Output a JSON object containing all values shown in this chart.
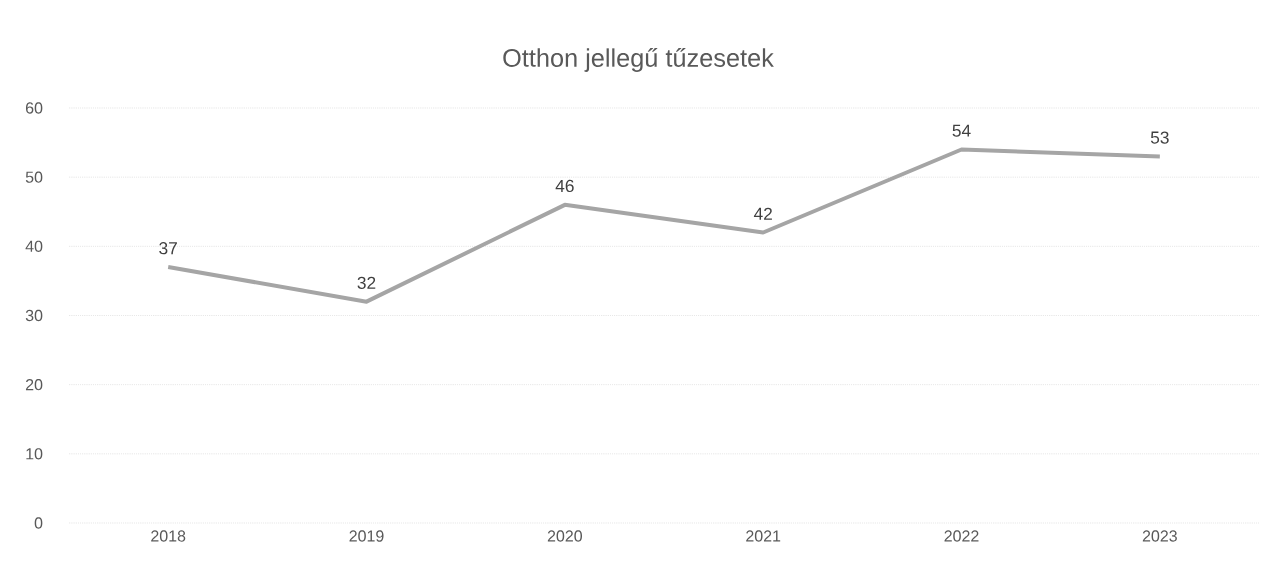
{
  "chart_data": {
    "type": "line",
    "title": "Otthon jellegű tűzesetek",
    "categories": [
      "2018",
      "2019",
      "2020",
      "2021",
      "2022",
      "2023"
    ],
    "series": [
      {
        "color": "#a5a5a5",
        "values": [
          37,
          32,
          46,
          42,
          54,
          53
        ]
      }
    ],
    "ylim": [
      0,
      60
    ],
    "yticks": [
      0,
      10,
      20,
      30,
      40,
      50,
      60
    ],
    "grid": "y",
    "data_labels": true,
    "marker": "none",
    "line_style": "solid"
  }
}
